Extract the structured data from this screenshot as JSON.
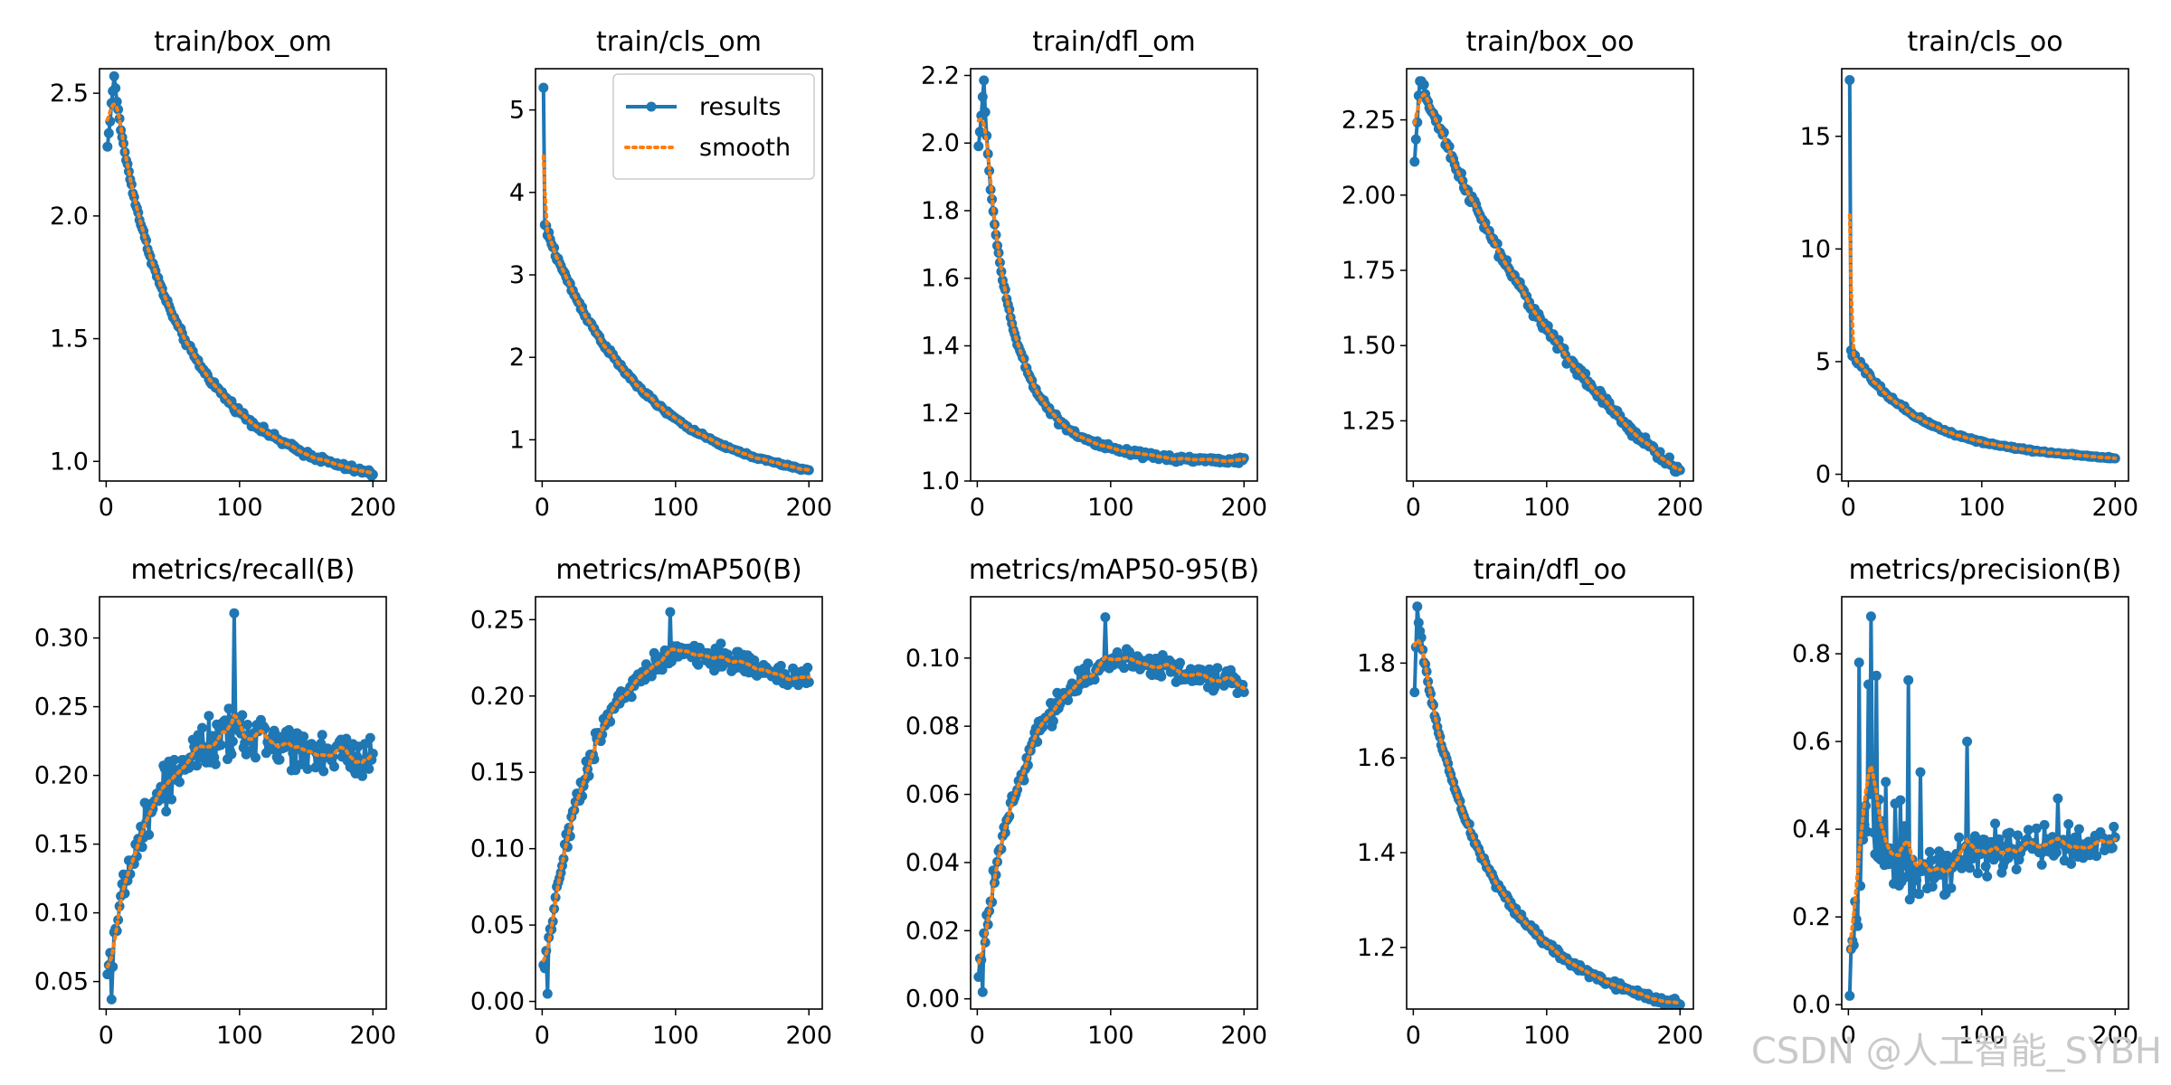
{
  "figure": {
    "watermark": "CSDN @人工智能_SYBH"
  },
  "legend": {
    "results_label": "results",
    "smooth_label": "smooth"
  },
  "colors": {
    "results": "#1f77b4",
    "smooth": "#ff7f0e",
    "axes": "#000000"
  },
  "chart_data": [
    {
      "type": "line",
      "title": "train/box_om",
      "xlim": [
        -5,
        210
      ],
      "ylim": [
        0.92,
        2.6
      ],
      "xticks": [
        0,
        100,
        200
      ],
      "yticks": [
        1.0,
        1.5,
        2.0,
        2.5
      ],
      "ytick_decimals": 1,
      "shape": "decay",
      "x_range": [
        1,
        200
      ],
      "start": 2.28,
      "end": 0.95,
      "peak": 2.57,
      "peak_at": 6,
      "k": 1.0,
      "curve_power": 0.85,
      "noise": 0.02,
      "smooth_lag": 0.15
    },
    {
      "type": "line",
      "title": "train/cls_om",
      "xlim": [
        -5,
        210
      ],
      "ylim": [
        0.5,
        5.5
      ],
      "xticks": [
        0,
        100,
        200
      ],
      "yticks": [
        1,
        2,
        3,
        4,
        5
      ],
      "ytick_decimals": 0,
      "shape": "spike_decay",
      "x_range": [
        1,
        200
      ],
      "start": 5.27,
      "end": 0.63,
      "after_spike": 3.6,
      "k": 6.0,
      "noise": 0.02,
      "smooth_lag": 0.15,
      "legend": {
        "position": "top-right",
        "entries": [
          "results",
          "smooth"
        ]
      }
    },
    {
      "type": "line",
      "title": "train/dfl_om",
      "xlim": [
        -5,
        210
      ],
      "ylim": [
        1.0,
        2.22
      ],
      "xticks": [
        0,
        100,
        200
      ],
      "yticks": [
        1.0,
        1.2,
        1.4,
        1.6,
        1.8,
        2.0,
        2.2
      ],
      "ytick_decimals": 1,
      "shape": "decay",
      "x_range": [
        1,
        200
      ],
      "start": 1.99,
      "end": 1.06,
      "peak": 2.18,
      "peak_at": 5,
      "k": 2.0,
      "curve_power": 0.8,
      "noise": 0.015,
      "smooth_lag": 0.15
    },
    {
      "type": "line",
      "title": "train/box_oo",
      "xlim": [
        -5,
        210
      ],
      "ylim": [
        1.05,
        2.42
      ],
      "xticks": [
        0,
        100,
        200
      ],
      "yticks": [
        1.25,
        1.5,
        1.75,
        2.0,
        2.25
      ],
      "ytick_decimals": 2,
      "shape": "decay",
      "x_range": [
        1,
        200
      ],
      "start": 2.11,
      "end": 1.08,
      "peak": 2.38,
      "peak_at": 5,
      "k": 0.4,
      "curve_power": 1.0,
      "noise": 0.03,
      "smooth_lag": 0.15
    },
    {
      "type": "line",
      "title": "train/cls_oo",
      "xlim": [
        -5,
        210
      ],
      "ylim": [
        -0.3,
        18.0
      ],
      "xticks": [
        0,
        100,
        200
      ],
      "yticks": [
        0,
        5,
        10,
        15
      ],
      "ytick_decimals": 0,
      "shape": "spike_decay",
      "x_range": [
        1,
        200
      ],
      "start": 17.5,
      "end": 0.7,
      "after_spike": 5.5,
      "k": 9.0,
      "noise": 0.05,
      "smooth_lag": 0.3
    },
    {
      "type": "line",
      "title": "metrics/recall(B)",
      "xlim": [
        -5,
        210
      ],
      "ylim": [
        0.03,
        0.33
      ],
      "xticks": [
        0,
        100,
        200
      ],
      "yticks": [
        0.05,
        0.1,
        0.15,
        0.2,
        0.25,
        0.3
      ],
      "ytick_decimals": 2,
      "shape": "rise_plateau",
      "x_range": [
        1,
        200
      ],
      "start": 0.05,
      "mid": 0.23,
      "mid_at": 100,
      "end": 0.21,
      "spread": 0.025,
      "min": 0.037,
      "max": 0.318,
      "noise_rise": 0.02
    },
    {
      "type": "line",
      "title": "metrics/mAP50(B)",
      "xlim": [
        -5,
        210
      ],
      "ylim": [
        -0.005,
        0.265
      ],
      "xticks": [
        0,
        100,
        200
      ],
      "yticks": [
        0.0,
        0.05,
        0.1,
        0.15,
        0.2,
        0.25
      ],
      "ytick_decimals": 2,
      "shape": "rise_plateau",
      "x_range": [
        1,
        200
      ],
      "start": 0.01,
      "mid": 0.23,
      "mid_at": 110,
      "end": 0.21,
      "spread": 0.012,
      "min": 0.005,
      "max": 0.255,
      "noise_rise": 0.012
    },
    {
      "type": "line",
      "title": "metrics/mAP50-95(B)",
      "xlim": [
        -5,
        210
      ],
      "ylim": [
        -0.003,
        0.118
      ],
      "xticks": [
        0,
        100,
        200
      ],
      "yticks": [
        0.0,
        0.02,
        0.04,
        0.06,
        0.08,
        0.1
      ],
      "ytick_decimals": 2,
      "shape": "rise_plateau",
      "x_range": [
        1,
        200
      ],
      "start": 0.004,
      "mid": 0.1,
      "mid_at": 110,
      "end": 0.092,
      "spread": 0.005,
      "min": 0.002,
      "max": 0.112,
      "noise_rise": 0.005
    },
    {
      "type": "line",
      "title": "train/dfl_oo",
      "xlim": [
        -5,
        210
      ],
      "ylim": [
        1.07,
        1.94
      ],
      "xticks": [
        0,
        100,
        200
      ],
      "yticks": [
        1.2,
        1.4,
        1.6,
        1.8
      ],
      "ytick_decimals": 1,
      "shape": "decay",
      "x_range": [
        1,
        200
      ],
      "start": 1.74,
      "end": 1.08,
      "peak": 1.92,
      "peak_at": 3,
      "k": 1.0,
      "curve_power": 0.85,
      "noise": 0.012,
      "smooth_lag": 0.15
    },
    {
      "type": "line",
      "title": "metrics/precision(B)",
      "xlim": [
        -5,
        210
      ],
      "ylim": [
        -0.01,
        0.93
      ],
      "xticks": [
        0,
        100,
        200
      ],
      "yticks": [
        0.0,
        0.2,
        0.4,
        0.6,
        0.8
      ],
      "ytick_decimals": 1,
      "shape": "noisy_plateau",
      "x_range": [
        1,
        200
      ],
      "start": 0.02,
      "mid": 0.33,
      "end": 0.36,
      "spread": 0.07,
      "min": 0.02,
      "max": 0.885,
      "spikes": [
        [
          8,
          0.78
        ],
        [
          15,
          0.73
        ],
        [
          17,
          0.885
        ],
        [
          21,
          0.75
        ],
        [
          45,
          0.74
        ],
        [
          54,
          0.53
        ],
        [
          89,
          0.6
        ],
        [
          157,
          0.47
        ]
      ]
    }
  ]
}
